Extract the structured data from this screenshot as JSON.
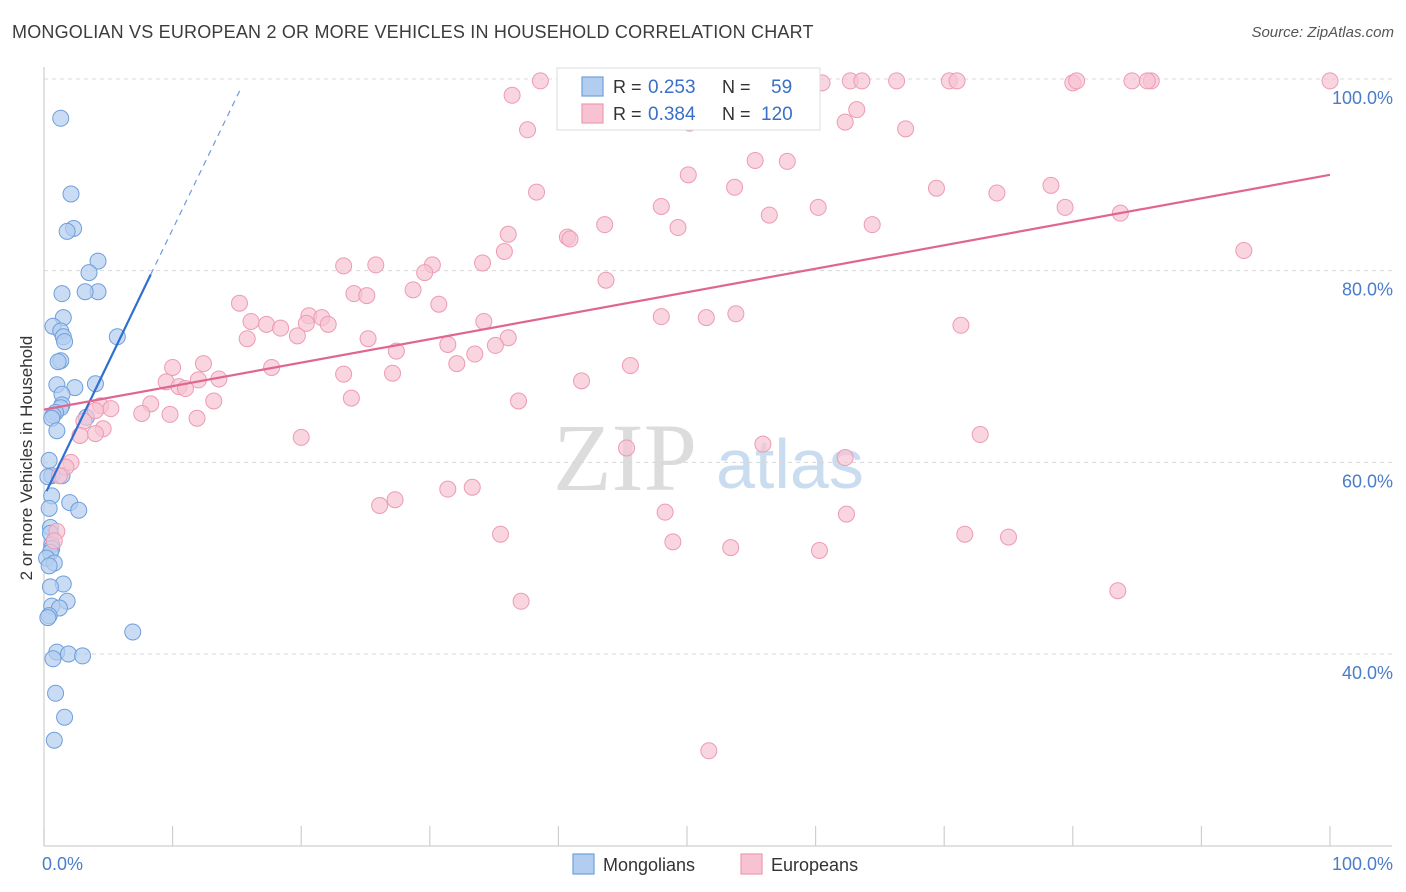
{
  "title": "MONGOLIAN VS EUROPEAN 2 OR MORE VEHICLES IN HOUSEHOLD CORRELATION CHART",
  "source": "Source: ZipAtlas.com",
  "watermark": {
    "zip": "ZIP",
    "atlas": "atlas"
  },
  "colors": {
    "mongolian_fill": "#b3cdf0",
    "mongolian_stroke": "#6f9fdc",
    "mongolian_line": "#2f6fcf",
    "european_fill": "#f7c3d3",
    "european_stroke": "#ee9ab5",
    "european_line": "#e06690",
    "grid": "#d8d8d8",
    "tick_text": "#4a7cc9"
  },
  "legend": {
    "rows": [
      {
        "r_label": "R = ",
        "r_value": "0.253",
        "n_label": "N = ",
        "n_value": "59"
      },
      {
        "r_label": "R = ",
        "r_value": "0.384",
        "n_label": "N = ",
        "n_value": "120"
      }
    ]
  },
  "bottom_legend": [
    "Mongolians",
    "Europeans"
  ],
  "chart_data": {
    "type": "scatter",
    "title": "MONGOLIAN VS EUROPEAN 2 OR MORE VEHICLES IN HOUSEHOLD CORRELATION CHART",
    "xlabel": "",
    "ylabel": "2 or more Vehicles in Household",
    "xlim": [
      0,
      100
    ],
    "ylim": [
      20,
      102
    ],
    "x_tick_labels": [
      "0.0%",
      "100.0%"
    ],
    "y_ticks": [
      40,
      60,
      80,
      100
    ],
    "y_tick_labels": [
      "40.0%",
      "60.0%",
      "80.0%",
      "100.0%"
    ],
    "grid": true,
    "series": [
      {
        "name": "Mongolians",
        "R": 0.253,
        "N": 59,
        "trend": {
          "x0": 0.2,
          "y0": 57.0,
          "x1": 8.3,
          "y1": 79.6,
          "dash_to_x": 15.3,
          "dash_to_y": 99.0
        },
        "points": [
          [
            1.3,
            95.9
          ],
          [
            2.1,
            88.0
          ],
          [
            2.3,
            84.4
          ],
          [
            1.8,
            84.1
          ],
          [
            4.2,
            81.0
          ],
          [
            3.5,
            79.8
          ],
          [
            4.2,
            77.8
          ],
          [
            3.2,
            77.8
          ],
          [
            1.4,
            77.6
          ],
          [
            1.5,
            75.1
          ],
          [
            0.7,
            74.2
          ],
          [
            1.3,
            73.7
          ],
          [
            1.5,
            73.1
          ],
          [
            5.7,
            73.1
          ],
          [
            1.6,
            72.6
          ],
          [
            1.3,
            70.6
          ],
          [
            1.1,
            70.5
          ],
          [
            4.0,
            68.2
          ],
          [
            1.0,
            68.1
          ],
          [
            2.4,
            67.8
          ],
          [
            1.4,
            67.1
          ],
          [
            1.4,
            66.0
          ],
          [
            1.3,
            65.7
          ],
          [
            0.9,
            65.2
          ],
          [
            0.7,
            64.9
          ],
          [
            0.6,
            64.6
          ],
          [
            3.3,
            64.7
          ],
          [
            1.0,
            63.3
          ],
          [
            0.4,
            60.2
          ],
          [
            0.6,
            58.6
          ],
          [
            1.4,
            58.6
          ],
          [
            0.3,
            58.5
          ],
          [
            0.6,
            56.5
          ],
          [
            2.0,
            55.8
          ],
          [
            2.7,
            55.0
          ],
          [
            0.4,
            55.2
          ],
          [
            0.5,
            53.2
          ],
          [
            0.5,
            52.6
          ],
          [
            0.6,
            51.4
          ],
          [
            0.6,
            51.0
          ],
          [
            0.5,
            50.6
          ],
          [
            0.2,
            50.0
          ],
          [
            0.8,
            49.5
          ],
          [
            0.4,
            49.2
          ],
          [
            1.5,
            47.3
          ],
          [
            0.5,
            47.0
          ],
          [
            1.8,
            45.5
          ],
          [
            0.6,
            45.0
          ],
          [
            1.2,
            44.8
          ],
          [
            0.4,
            44.0
          ],
          [
            6.9,
            42.3
          ],
          [
            1.0,
            40.2
          ],
          [
            1.9,
            40.0
          ],
          [
            3.0,
            39.8
          ],
          [
            0.7,
            39.5
          ],
          [
            0.9,
            35.9
          ],
          [
            1.6,
            33.4
          ],
          [
            0.8,
            31.0
          ],
          [
            0.3,
            43.8
          ]
        ]
      },
      {
        "name": "Europeans",
        "R": 0.384,
        "N": 120,
        "trend": {
          "x0": 0,
          "y0": 65.5,
          "x1": 100,
          "y1": 90.0
        },
        "points": [
          [
            38.6,
            99.8
          ],
          [
            40.8,
            99.8
          ],
          [
            46.2,
            99.8
          ],
          [
            47.5,
            99.8
          ],
          [
            62.7,
            99.8
          ],
          [
            63.6,
            99.8
          ],
          [
            66.3,
            99.8
          ],
          [
            70.4,
            99.8
          ],
          [
            71.0,
            99.8
          ],
          [
            84.6,
            99.8
          ],
          [
            86.1,
            99.8
          ],
          [
            100.0,
            99.8
          ],
          [
            36.4,
            98.3
          ],
          [
            49.3,
            97.0
          ],
          [
            47.8,
            96.4
          ],
          [
            63.2,
            96.8
          ],
          [
            37.6,
            94.7
          ],
          [
            50.2,
            95.4
          ],
          [
            62.3,
            95.5
          ],
          [
            67.0,
            94.8
          ],
          [
            80.0,
            99.6
          ],
          [
            80.3,
            99.8
          ],
          [
            85.8,
            99.8
          ],
          [
            60.5,
            99.6
          ],
          [
            57.8,
            91.4
          ],
          [
            50.1,
            90.0
          ],
          [
            38.3,
            88.2
          ],
          [
            53.7,
            88.7
          ],
          [
            55.3,
            91.5
          ],
          [
            69.4,
            88.6
          ],
          [
            74.1,
            88.1
          ],
          [
            78.3,
            88.9
          ],
          [
            48.0,
            86.7
          ],
          [
            60.2,
            86.6
          ],
          [
            49.3,
            84.5
          ],
          [
            56.4,
            85.8
          ],
          [
            64.4,
            84.8
          ],
          [
            83.7,
            86.0
          ],
          [
            40.7,
            83.5
          ],
          [
            43.6,
            84.8
          ],
          [
            36.1,
            83.8
          ],
          [
            40.9,
            83.3
          ],
          [
            79.4,
            86.6
          ],
          [
            93.3,
            82.1
          ],
          [
            35.8,
            82.0
          ],
          [
            34.1,
            80.8
          ],
          [
            30.2,
            80.6
          ],
          [
            25.8,
            80.6
          ],
          [
            23.3,
            80.5
          ],
          [
            29.6,
            79.8
          ],
          [
            43.7,
            79.0
          ],
          [
            28.7,
            78.0
          ],
          [
            30.7,
            76.5
          ],
          [
            24.1,
            77.6
          ],
          [
            25.1,
            77.4
          ],
          [
            20.6,
            75.3
          ],
          [
            15.2,
            76.6
          ],
          [
            48.0,
            75.2
          ],
          [
            53.8,
            75.5
          ],
          [
            51.5,
            75.1
          ],
          [
            21.6,
            75.1
          ],
          [
            20.4,
            74.5
          ],
          [
            16.1,
            74.7
          ],
          [
            17.3,
            74.4
          ],
          [
            22.1,
            74.4
          ],
          [
            34.2,
            74.7
          ],
          [
            71.3,
            74.3
          ],
          [
            18.4,
            74.0
          ],
          [
            19.7,
            73.2
          ],
          [
            25.2,
            72.9
          ],
          [
            36.1,
            73.0
          ],
          [
            15.8,
            72.9
          ],
          [
            35.1,
            72.2
          ],
          [
            31.4,
            72.3
          ],
          [
            33.5,
            71.3
          ],
          [
            45.6,
            70.1
          ],
          [
            27.4,
            71.6
          ],
          [
            32.1,
            70.3
          ],
          [
            27.1,
            69.3
          ],
          [
            23.3,
            69.2
          ],
          [
            41.8,
            68.5
          ],
          [
            17.7,
            69.9
          ],
          [
            12.4,
            70.3
          ],
          [
            10.0,
            69.9
          ],
          [
            13.6,
            68.7
          ],
          [
            12.0,
            68.6
          ],
          [
            9.5,
            68.4
          ],
          [
            10.5,
            67.9
          ],
          [
            11.0,
            67.7
          ],
          [
            23.9,
            66.7
          ],
          [
            36.9,
            66.4
          ],
          [
            13.2,
            66.4
          ],
          [
            8.3,
            66.1
          ],
          [
            4.4,
            65.9
          ],
          [
            5.2,
            65.6
          ],
          [
            4.0,
            65.4
          ],
          [
            7.6,
            65.1
          ],
          [
            9.8,
            65.0
          ],
          [
            11.9,
            64.6
          ],
          [
            3.1,
            64.3
          ],
          [
            4.6,
            63.5
          ],
          [
            4.0,
            63.0
          ],
          [
            2.8,
            62.8
          ],
          [
            20.0,
            62.6
          ],
          [
            55.9,
            61.9
          ],
          [
            72.8,
            62.9
          ],
          [
            45.3,
            61.5
          ],
          [
            62.3,
            60.5
          ],
          [
            2.1,
            60.0
          ],
          [
            1.7,
            59.5
          ],
          [
            1.2,
            58.6
          ],
          [
            31.4,
            57.2
          ],
          [
            33.3,
            57.4
          ],
          [
            27.3,
            56.1
          ],
          [
            48.3,
            54.8
          ],
          [
            62.4,
            54.6
          ],
          [
            71.6,
            52.5
          ],
          [
            75.0,
            52.2
          ],
          [
            26.1,
            55.5
          ],
          [
            35.5,
            52.5
          ],
          [
            48.9,
            51.7
          ],
          [
            53.4,
            51.1
          ],
          [
            60.3,
            50.8
          ],
          [
            83.5,
            46.6
          ],
          [
            37.1,
            45.5
          ],
          [
            51.7,
            29.9
          ],
          [
            1.0,
            52.8
          ],
          [
            0.8,
            51.8
          ]
        ]
      }
    ]
  }
}
